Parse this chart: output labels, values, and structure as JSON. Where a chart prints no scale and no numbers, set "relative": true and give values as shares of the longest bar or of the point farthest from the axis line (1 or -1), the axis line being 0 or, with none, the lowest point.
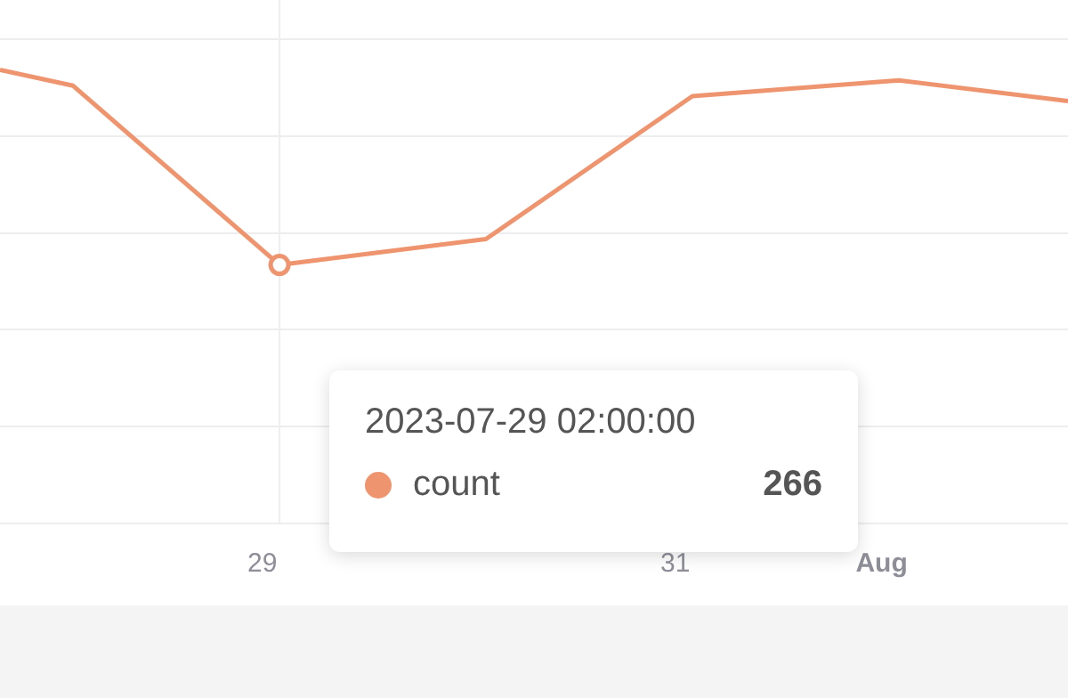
{
  "chart_data": {
    "type": "line",
    "relative": true,
    "x": [
      "2023-07-27T17:30",
      "2023-07-28T02:00",
      "2023-07-29T02:00",
      "2023-07-30T02:00",
      "2023-07-31T02:00",
      "2023-08-01T02:00",
      "2023-08-01T21:40"
    ],
    "series": [
      {
        "name": "count",
        "color": "#ee9570",
        "values": [
          1,
          0.965,
          0.57,
          0.627,
          0.942,
          0.977,
          0.931
        ]
      }
    ],
    "xlim": [
      "2023-07-27T17:30",
      "2023-08-01T21:40"
    ],
    "xticks": [
      {
        "value": "2023-07-29",
        "label": "29"
      },
      {
        "value": "2023-07-31",
        "label": "31"
      },
      {
        "value": "2023-08-01",
        "label": "Aug"
      }
    ],
    "annotations": [
      "2023-07-29 02:00:00",
      "266"
    ],
    "ref_lines": [
      {
        "axis": "x",
        "value": "2023-07-29T02:00",
        "color": "#eeeef0"
      }
    ],
    "grid": "y",
    "legend": "bottom",
    "marker": "none",
    "line_style": "solid"
  }
}
